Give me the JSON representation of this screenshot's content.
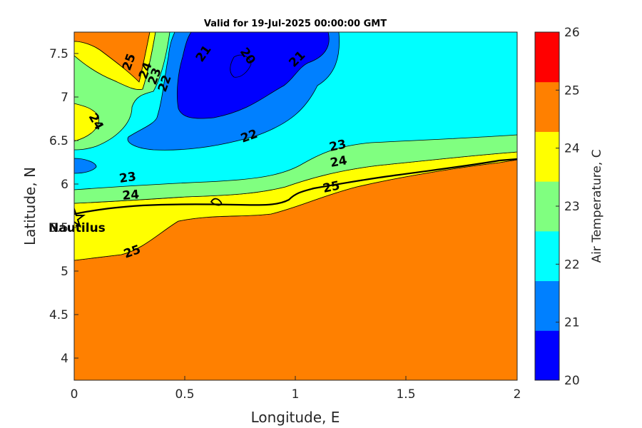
{
  "title": "Valid for 19-Jul-2025 00:00:00 GMT",
  "xlabel": "Longitude, E",
  "ylabel": "Latitude, N",
  "colorbar_label": "Air Temperature, C",
  "x_ticks": [
    "0",
    "0.5",
    "1",
    "1.5",
    "2"
  ],
  "y_ticks": [
    "4",
    "4.5",
    "5",
    "5.5",
    "6",
    "6.5",
    "7",
    "7.5"
  ],
  "colorbar_ticks": [
    "20",
    "21",
    "22",
    "23",
    "24",
    "25",
    "26"
  ],
  "colorbar_colors": [
    "#0000ff",
    "#0080ff",
    "#00ffff",
    "#80ff80",
    "#ffff00",
    "#ff8000",
    "#ff0000"
  ],
  "marker_label": "Nautilus",
  "contour_labels": [
    "25",
    "24",
    "23",
    "22",
    "21",
    "20",
    "21",
    "24",
    "22",
    "23",
    "24",
    "23",
    "24",
    "25",
    "25"
  ],
  "chart_data": {
    "type": "heatmap",
    "title": "Valid for 19-Jul-2025 00:00:00 GMT",
    "xlabel": "Longitude, E",
    "ylabel": "Latitude, N",
    "xlim": [
      0,
      2
    ],
    "ylim": [
      3.75,
      7.75
    ],
    "colorbar": {
      "label": "Air Temperature, C",
      "range": [
        20,
        26
      ],
      "levels": [
        20,
        21,
        22,
        23,
        24,
        25,
        26
      ]
    },
    "marker": {
      "name": "Nautilus",
      "lon": 0.0,
      "lat": 5.63
    },
    "contour_levels": [
      20,
      21,
      22,
      23,
      24,
      25
    ]
  }
}
